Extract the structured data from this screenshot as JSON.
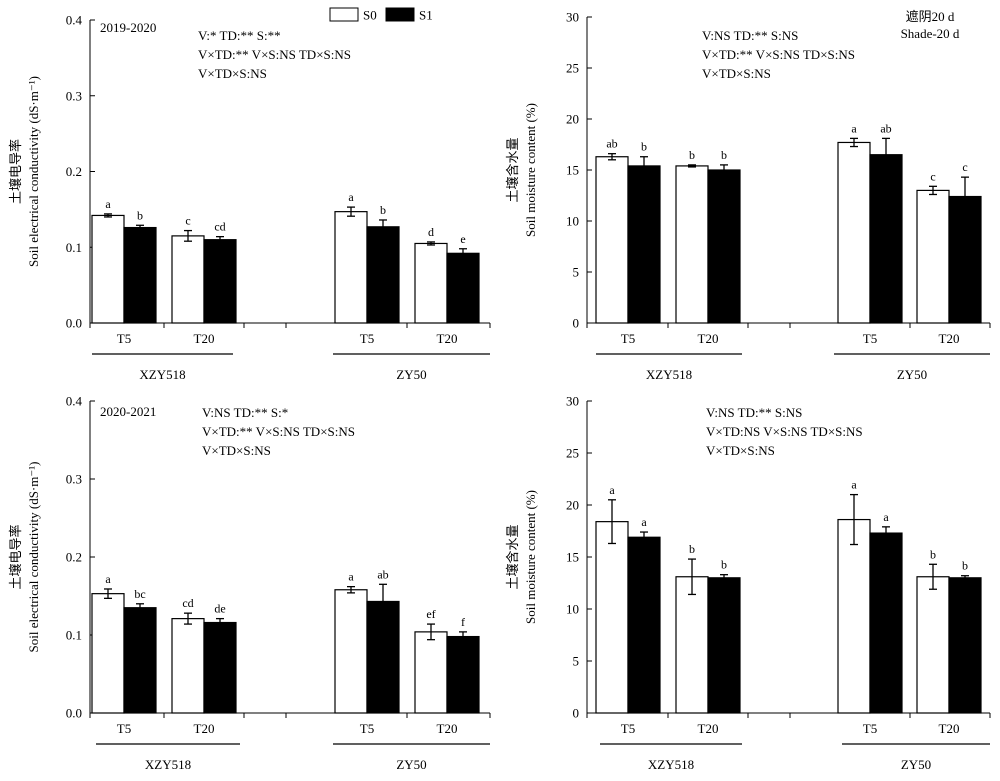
{
  "legend": {
    "items": [
      {
        "label": "S0",
        "color": "#ffffff"
      },
      {
        "label": "S1",
        "color": "#000000"
      }
    ]
  },
  "chart_data": [
    {
      "id": "a",
      "type": "bar",
      "title": "2019-2020",
      "ylabel": "Soil electrical conductivity (dS·m⁻¹)",
      "ylabel_cn": "土壤电导率",
      "ylim": [
        0,
        0.4
      ],
      "yticks": [
        "0.0",
        "0.1",
        "0.2",
        "0.3",
        "0.4"
      ],
      "stats": [
        "V:* TD:** S:**",
        "V×TD:** V×S:NS TD×S:NS",
        "V×TD×S:NS"
      ],
      "groups": [
        {
          "name": "XZY518",
          "categories": [
            "T5",
            "T20"
          ]
        },
        {
          "name": "ZY50",
          "categories": [
            "T5",
            "T20"
          ]
        }
      ],
      "series": [
        {
          "name": "S0",
          "values": [
            0.142,
            0.115,
            0.147,
            0.105
          ],
          "errors": [
            0.002,
            0.007,
            0.006,
            0.002
          ],
          "letters": [
            "a",
            "c",
            "a",
            "d"
          ]
        },
        {
          "name": "S1",
          "values": [
            0.126,
            0.11,
            0.127,
            0.092
          ],
          "errors": [
            0.003,
            0.004,
            0.009,
            0.006
          ],
          "letters": [
            "b",
            "cd",
            "b",
            "e"
          ]
        }
      ]
    },
    {
      "id": "b",
      "type": "bar",
      "title": "",
      "ylabel": "Soil moisture content (%)",
      "ylabel_cn": "土壤含水量",
      "ylim": [
        0,
        30
      ],
      "yticks": [
        "0",
        "5",
        "10",
        "15",
        "20",
        "25",
        "30"
      ],
      "stats": [
        "V:NS TD:** S:NS",
        "V×TD:** V×S:NS TD×S:NS",
        "V×TD×S:NS"
      ],
      "note": [
        "遮阴20 d",
        "Shade-20 d"
      ],
      "groups": [
        {
          "name": "XZY518",
          "categories": [
            "T5",
            "T20"
          ]
        },
        {
          "name": "ZY50",
          "categories": [
            "T5",
            "T20"
          ]
        }
      ],
      "series": [
        {
          "name": "S0",
          "values": [
            16.3,
            15.4,
            17.7,
            13.0
          ],
          "errors": [
            0.3,
            0.1,
            0.4,
            0.4
          ],
          "letters": [
            "ab",
            "b",
            "a",
            "c"
          ]
        },
        {
          "name": "S1",
          "values": [
            15.4,
            15.0,
            16.5,
            12.4
          ],
          "errors": [
            0.9,
            0.5,
            1.6,
            1.9
          ],
          "letters": [
            "b",
            "b",
            "ab",
            "c"
          ]
        }
      ]
    },
    {
      "id": "c",
      "type": "bar",
      "title": "2020-2021",
      "ylabel": "Soil electrical conductivity (dS·m⁻¹)",
      "ylabel_cn": "土壤电导率",
      "ylim": [
        0,
        0.4
      ],
      "yticks": [
        "0.0",
        "0.1",
        "0.2",
        "0.3",
        "0.4"
      ],
      "stats": [
        "V:NS TD:** S:*",
        "V×TD:** V×S:NS TD×S:NS",
        "V×TD×S:NS"
      ],
      "groups": [
        {
          "name": "XZY518",
          "categories": [
            "T5",
            "T20"
          ]
        },
        {
          "name": "ZY50",
          "categories": [
            "T5",
            "T20"
          ]
        }
      ],
      "series": [
        {
          "name": "S0",
          "values": [
            0.153,
            0.121,
            0.158,
            0.104
          ],
          "errors": [
            0.006,
            0.007,
            0.004,
            0.01
          ],
          "letters": [
            "a",
            "cd",
            "a",
            "ef"
          ]
        },
        {
          "name": "S1",
          "values": [
            0.135,
            0.116,
            0.143,
            0.098
          ],
          "errors": [
            0.005,
            0.005,
            0.022,
            0.006
          ],
          "letters": [
            "bc",
            "de",
            "ab",
            "f"
          ]
        }
      ]
    },
    {
      "id": "d",
      "type": "bar",
      "title": "",
      "ylabel": "Soil moisture content (%)",
      "ylabel_cn": "土壤含水量",
      "ylim": [
        0,
        30
      ],
      "yticks": [
        "0",
        "5",
        "10",
        "15",
        "20",
        "25",
        "30"
      ],
      "stats": [
        "V:NS TD:** S:NS",
        "V×TD:NS V×S:NS TD×S:NS",
        "V×TD×S:NS"
      ],
      "groups": [
        {
          "name": "XZY518",
          "categories": [
            "T5",
            "T20"
          ]
        },
        {
          "name": "ZY50",
          "categories": [
            "T5",
            "T20"
          ]
        }
      ],
      "series": [
        {
          "name": "S0",
          "values": [
            18.4,
            13.1,
            18.6,
            13.1
          ],
          "errors": [
            2.1,
            1.7,
            2.4,
            1.2
          ],
          "letters": [
            "a",
            "b",
            "a",
            "b"
          ]
        },
        {
          "name": "S1",
          "values": [
            16.9,
            13.0,
            17.3,
            13.0
          ],
          "errors": [
            0.5,
            0.3,
            0.6,
            0.2
          ],
          "letters": [
            "a",
            "b",
            "a",
            "b"
          ]
        }
      ]
    }
  ]
}
